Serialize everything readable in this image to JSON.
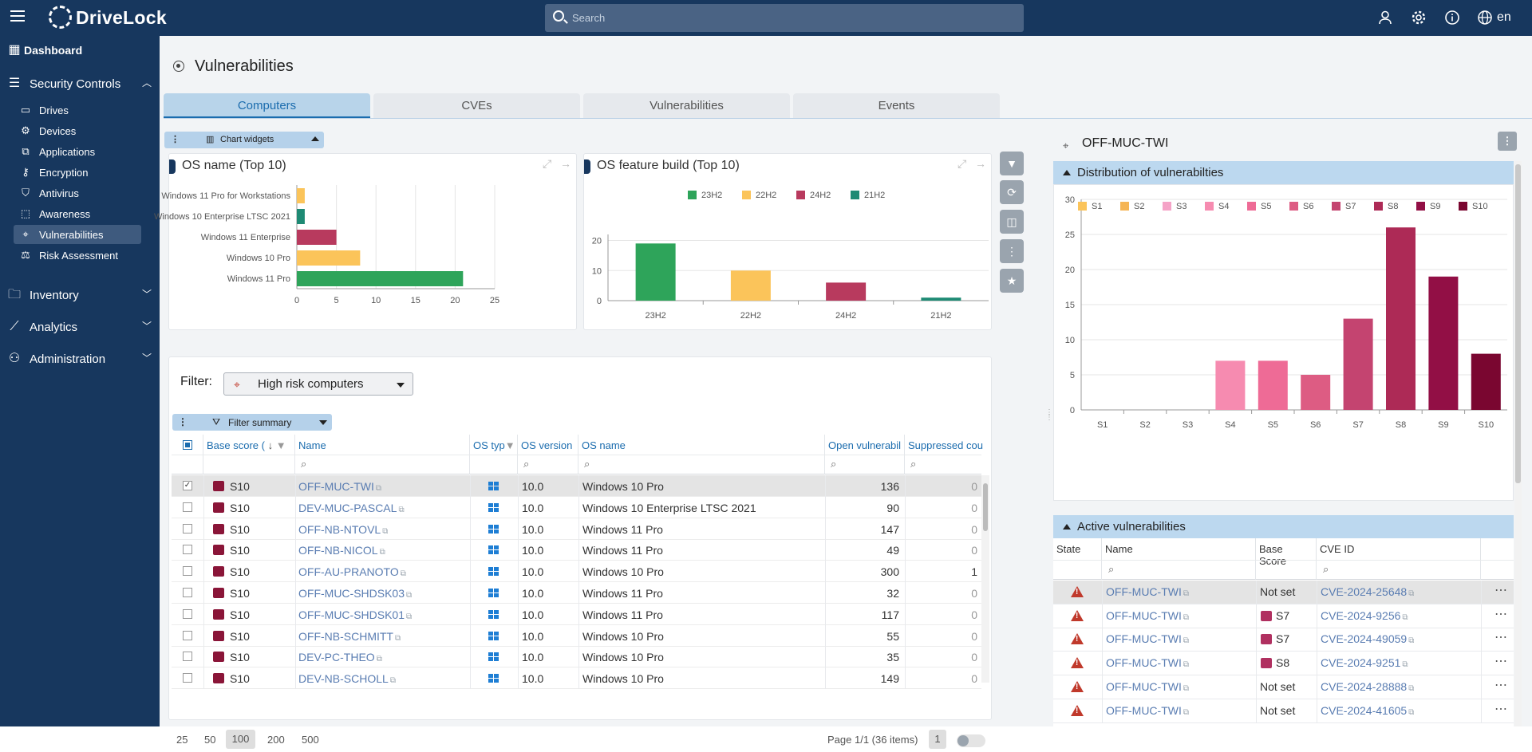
{
  "app": {
    "name": "DriveLock",
    "language": "en"
  },
  "search": {
    "placeholder": "Search"
  },
  "sidebar": {
    "dashboard": "Dashboard",
    "security_controls": {
      "label": "Security Controls",
      "items": [
        {
          "label": "Drives",
          "icon": "drive-icon"
        },
        {
          "label": "Devices",
          "icon": "gear-icon"
        },
        {
          "label": "Applications",
          "icon": "applications-icon"
        },
        {
          "label": "Encryption",
          "icon": "key-icon"
        },
        {
          "label": "Antivirus",
          "icon": "shield-icon"
        },
        {
          "label": "Awareness",
          "icon": "awareness-icon"
        },
        {
          "label": "Vulnerabilities",
          "icon": "crosshair-icon"
        },
        {
          "label": "Risk Assessment",
          "icon": "risk-icon"
        }
      ]
    },
    "inventory": "Inventory",
    "analytics": "Analytics",
    "administration": "Administration"
  },
  "page": {
    "title": "Vulnerabilities"
  },
  "tabs": [
    "Computers",
    "CVEs",
    "Vulnerabilities",
    "Events"
  ],
  "chart_widgets_label": "Chart widgets",
  "filter": {
    "label": "Filter:",
    "value": "High risk computers",
    "summary_label": "Filter summary"
  },
  "chart_data": [
    {
      "type": "bar",
      "title": "OS name (Top 10)",
      "orientation": "horizontal",
      "categories": [
        "Windows 11 Pro for Workstations",
        "Windows 10 Enterprise LTSC 2021",
        "Windows 11 Enterprise",
        "Windows 10 Pro",
        "Windows 11 Pro"
      ],
      "values": [
        1,
        1,
        5,
        8,
        21
      ],
      "colors": [
        "#fbc45a",
        "#1e8a74",
        "#b83a5e",
        "#fbc45a",
        "#2ea45a"
      ],
      "xlim": [
        0,
        25
      ],
      "xticks": [
        0,
        5,
        10,
        15,
        20,
        25
      ],
      "grid": true
    },
    {
      "type": "bar",
      "title": "OS feature build (Top 10)",
      "categories": [
        "23H2",
        "22H2",
        "24H2",
        "21H2"
      ],
      "values": [
        19,
        10,
        6,
        1
      ],
      "colors": [
        "#2ea45a",
        "#fbc45a",
        "#b83a5e",
        "#1e8a74"
      ],
      "legend": [
        "23H2",
        "22H2",
        "24H2",
        "21H2"
      ],
      "legend_position": "top",
      "ylim": [
        0,
        22
      ],
      "yticks": [
        0,
        10,
        20
      ],
      "grid": true
    },
    {
      "type": "bar",
      "title": "Distribution of vulnerabilties",
      "categories": [
        "S1",
        "S2",
        "S3",
        "S4",
        "S5",
        "S6",
        "S7",
        "S8",
        "S9",
        "S10"
      ],
      "values": [
        0,
        0,
        0,
        7,
        7,
        5,
        13,
        26,
        19,
        8
      ],
      "colors": [
        "#fbc45a",
        "#f5b555",
        "#f5a3c7",
        "#f68bb0",
        "#ee6b96",
        "#dd5c83",
        "#c44470",
        "#ad2a56",
        "#920f45",
        "#7a0630"
      ],
      "legend": [
        "S1",
        "S2",
        "S3",
        "S4",
        "S5",
        "S6",
        "S7",
        "S8",
        "S9",
        "S10"
      ],
      "legend_position": "top",
      "ylim": [
        0,
        30
      ],
      "yticks": [
        0,
        5,
        10,
        15,
        20,
        25,
        30
      ],
      "grid": true
    }
  ],
  "table": {
    "columns": [
      "Base score (",
      "Name",
      "OS typ",
      "OS version",
      "OS name",
      "Open vulnerabil",
      "Suppressed cou"
    ],
    "rows": [
      {
        "score": "S10",
        "name": "OFF-MUC-TWI",
        "version": "10.0",
        "os": "Windows 10 Pro",
        "open": "136",
        "suppressed": "0",
        "selected": true
      },
      {
        "score": "S10",
        "name": "DEV-MUC-PASCAL",
        "version": "10.0",
        "os": "Windows 10 Enterprise LTSC 2021",
        "open": "90",
        "suppressed": "0"
      },
      {
        "score": "S10",
        "name": "OFF-NB-NTOVL",
        "version": "10.0",
        "os": "Windows 11 Pro",
        "open": "147",
        "suppressed": "0"
      },
      {
        "score": "S10",
        "name": "OFF-NB-NICOL",
        "version": "10.0",
        "os": "Windows 11 Pro",
        "open": "49",
        "suppressed": "0"
      },
      {
        "score": "S10",
        "name": "OFF-AU-PRANOTO",
        "version": "10.0",
        "os": "Windows 10 Pro",
        "open": "300",
        "suppressed": "1"
      },
      {
        "score": "S10",
        "name": "OFF-MUC-SHDSK03",
        "version": "10.0",
        "os": "Windows 11 Pro",
        "open": "32",
        "suppressed": "0"
      },
      {
        "score": "S10",
        "name": "OFF-MUC-SHDSK01",
        "version": "10.0",
        "os": "Windows 11 Pro",
        "open": "117",
        "suppressed": "0"
      },
      {
        "score": "S10",
        "name": "OFF-NB-SCHMITT",
        "version": "10.0",
        "os": "Windows 10 Pro",
        "open": "55",
        "suppressed": "0"
      },
      {
        "score": "S10",
        "name": "DEV-PC-THEO",
        "version": "10.0",
        "os": "Windows 10 Pro",
        "open": "35",
        "suppressed": "0"
      },
      {
        "score": "S10",
        "name": "DEV-NB-SCHOLL",
        "version": "10.0",
        "os": "Windows 10 Pro",
        "open": "149",
        "suppressed": "0"
      }
    ]
  },
  "pager": {
    "sizes": [
      "25",
      "50",
      "100",
      "200",
      "500"
    ],
    "selected_size": "100",
    "info": "Page 1/1 (36 items)",
    "page": "1"
  },
  "detail": {
    "computer": "OFF-MUC-TWI",
    "dist_title": "Distribution of vulnerabilties",
    "active_title": "Active vulnerabilities",
    "columns": [
      "State",
      "Name",
      "Base Score",
      "CVE ID"
    ],
    "rows": [
      {
        "name": "OFF-MUC-TWI",
        "score": "Not set",
        "cve": "CVE-2024-25648",
        "selected": true
      },
      {
        "name": "OFF-MUC-TWI",
        "score": "S7",
        "cve": "CVE-2024-9256",
        "badge": true
      },
      {
        "name": "OFF-MUC-TWI",
        "score": "S7",
        "cve": "CVE-2024-49059",
        "badge": true
      },
      {
        "name": "OFF-MUC-TWI",
        "score": "S8",
        "cve": "CVE-2024-9251",
        "badge": true
      },
      {
        "name": "OFF-MUC-TWI",
        "score": "Not set",
        "cve": "CVE-2024-28888"
      },
      {
        "name": "OFF-MUC-TWI",
        "score": "Not set",
        "cve": "CVE-2024-41605"
      }
    ]
  }
}
